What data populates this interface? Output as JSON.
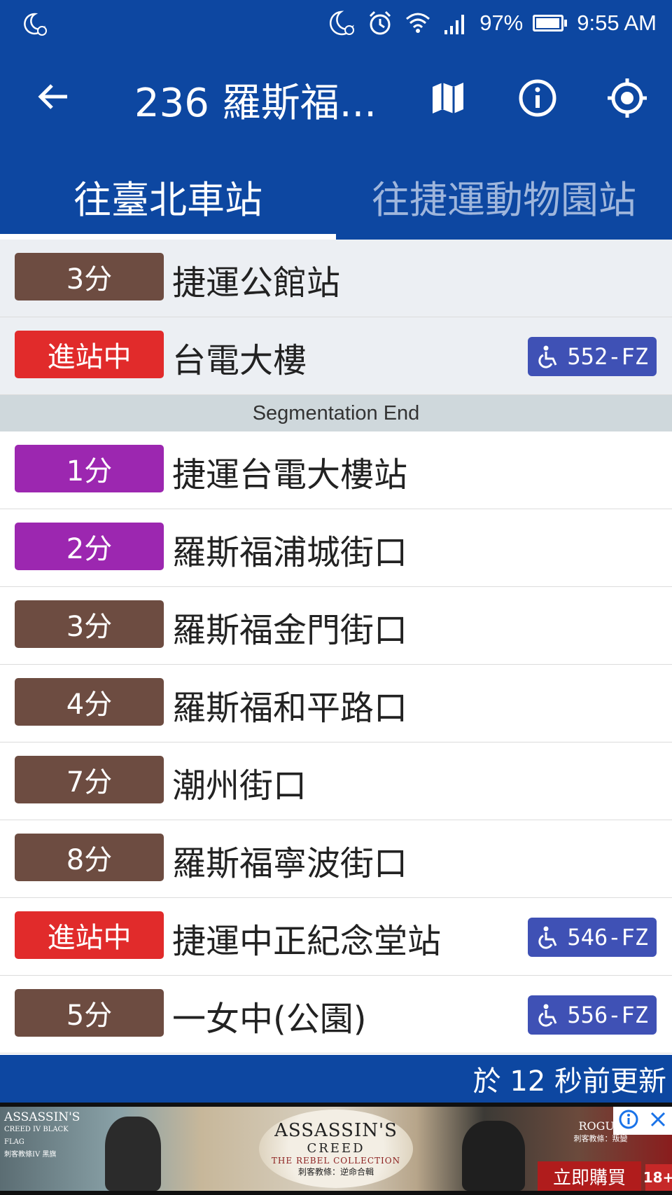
{
  "status_bar": {
    "battery": "97%",
    "time": "9:55 AM"
  },
  "app_bar": {
    "title": "236 羅斯福..."
  },
  "tabs": [
    {
      "label": "往臺北車站",
      "selected": true
    },
    {
      "label": "往捷運動物園站",
      "selected": false
    }
  ],
  "previous_stops": [
    {
      "eta": "3分",
      "stop": "捷運公館站",
      "color": "brown"
    },
    {
      "eta": "進站中",
      "stop": "台電大樓",
      "color": "red",
      "plate": "552-FZ"
    }
  ],
  "segment_label": "Segmentation End",
  "stops": [
    {
      "eta": "1分",
      "stop": "捷運台電大樓站",
      "color": "purple"
    },
    {
      "eta": "2分",
      "stop": "羅斯福浦城街口",
      "color": "purple"
    },
    {
      "eta": "3分",
      "stop": "羅斯福金門街口",
      "color": "brown"
    },
    {
      "eta": "4分",
      "stop": "羅斯福和平路口",
      "color": "brown"
    },
    {
      "eta": "7分",
      "stop": "潮州街口",
      "color": "brown"
    },
    {
      "eta": "8分",
      "stop": "羅斯福寧波街口",
      "color": "brown"
    },
    {
      "eta": "進站中",
      "stop": "捷運中正紀念堂站",
      "color": "red",
      "plate": "546-FZ"
    },
    {
      "eta": "5分",
      "stop": "一女中(公園)",
      "color": "brown",
      "plate": "556-FZ"
    }
  ],
  "update_text": "於 12 秒前更新",
  "ad": {
    "left_logo": "ASSASSIN'S",
    "left_logo_sub": "CREED IV BLACK FLAG",
    "left_logo_cn": "刺客教條IV 黑旗",
    "center_title": "ASSASSIN'S",
    "center_sub": "CREED",
    "center_collection": "THE REBEL COLLECTION",
    "center_cn": "刺客教條：逆命合輯",
    "right_logo": "ROGUE",
    "right_logo_cn": "刺客教條：叛變",
    "buy_label": "立即購買",
    "rating": "18+"
  },
  "colors": {
    "primary": "#0d47a1",
    "badge_brown": "#6d4c41",
    "badge_red": "#e12b2b",
    "badge_purple": "#9c27b0",
    "plate_blue": "#3f51b5"
  }
}
